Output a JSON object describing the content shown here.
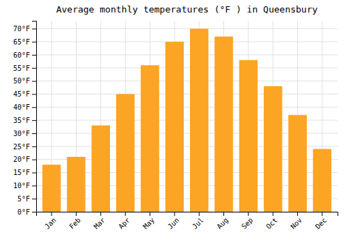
{
  "chart_data": {
    "type": "bar",
    "title": "Average monthly temperatures (°F ) in Queensbury",
    "categories": [
      "Jan",
      "Feb",
      "Mar",
      "Apr",
      "May",
      "Jun",
      "Jul",
      "Aug",
      "Sep",
      "Oct",
      "Nov",
      "Dec"
    ],
    "values": [
      18,
      21,
      33,
      45,
      56,
      65,
      70,
      67,
      58,
      48,
      37,
      24
    ],
    "color": "#FCA424",
    "ylim": [
      0,
      73
    ],
    "yticks": [
      {
        "value": 0,
        "label": "0°F"
      },
      {
        "value": 5,
        "label": "5°F"
      },
      {
        "value": 10,
        "label": "10°F"
      },
      {
        "value": 15,
        "label": "15°F"
      },
      {
        "value": 20,
        "label": "20°F"
      },
      {
        "value": 25,
        "label": "25°F"
      },
      {
        "value": 30,
        "label": "30°F"
      },
      {
        "value": 35,
        "label": "35°F"
      },
      {
        "value": 40,
        "label": "40°F"
      },
      {
        "value": 45,
        "label": "45°F"
      },
      {
        "value": 50,
        "label": "50°F"
      },
      {
        "value": 55,
        "label": "55°F"
      },
      {
        "value": 60,
        "label": "60°F"
      },
      {
        "value": 65,
        "label": "65°F"
      },
      {
        "value": 70,
        "label": "70°F"
      }
    ],
    "grid": true
  }
}
